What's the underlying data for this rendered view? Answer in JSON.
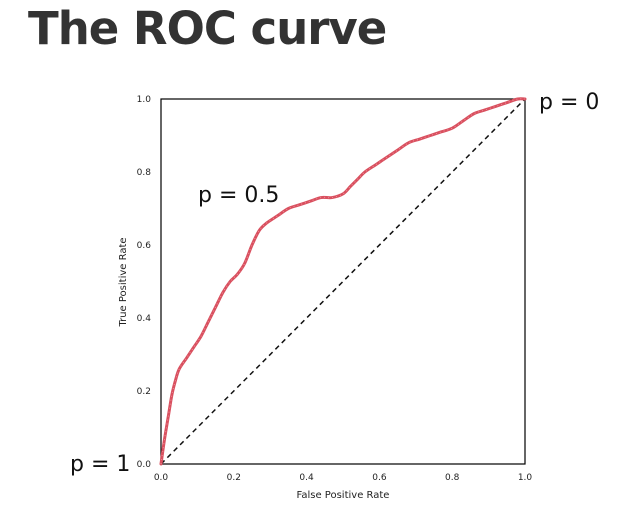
{
  "title": "The ROC curve",
  "annotations": {
    "top_right": "p = 0",
    "middle": "p = 0.5",
    "bottom_left": "p = 1"
  },
  "colors": {
    "curve": "#d9505f",
    "diagonal": "#111111",
    "axes": "#000000",
    "title": "#333333"
  },
  "chart_data": {
    "type": "line",
    "title": "",
    "xlabel": "False Positive Rate",
    "ylabel": "True Positive Rate",
    "xlim": [
      0.0,
      1.0
    ],
    "ylim": [
      0.0,
      1.0
    ],
    "x_ticks": [
      "0.0",
      "0.2",
      "0.4",
      "0.6",
      "0.8",
      "1.0"
    ],
    "y_ticks": [
      "0.0",
      "0.2",
      "0.4",
      "0.6",
      "0.8",
      "1.0"
    ],
    "grid": false,
    "legend": "none",
    "series": [
      {
        "style": "solid-dotted-red",
        "x": [
          0.0,
          0.01,
          0.02,
          0.03,
          0.04,
          0.05,
          0.07,
          0.09,
          0.11,
          0.13,
          0.15,
          0.17,
          0.19,
          0.21,
          0.23,
          0.25,
          0.27,
          0.29,
          0.32,
          0.35,
          0.38,
          0.41,
          0.44,
          0.47,
          0.5,
          0.52,
          0.54,
          0.56,
          0.59,
          0.62,
          0.65,
          0.68,
          0.71,
          0.74,
          0.77,
          0.8,
          0.83,
          0.86,
          0.89,
          0.92,
          0.95,
          0.98,
          1.0
        ],
        "y": [
          0.0,
          0.07,
          0.13,
          0.19,
          0.23,
          0.26,
          0.29,
          0.32,
          0.35,
          0.39,
          0.43,
          0.47,
          0.5,
          0.52,
          0.55,
          0.6,
          0.64,
          0.66,
          0.68,
          0.7,
          0.71,
          0.72,
          0.73,
          0.73,
          0.74,
          0.76,
          0.78,
          0.8,
          0.82,
          0.84,
          0.86,
          0.88,
          0.89,
          0.9,
          0.91,
          0.92,
          0.94,
          0.96,
          0.97,
          0.98,
          0.99,
          1.0,
          1.0
        ]
      },
      {
        "style": "dashed-black",
        "x": [
          0.0,
          1.0
        ],
        "y": [
          0.0,
          1.0
        ]
      }
    ]
  }
}
